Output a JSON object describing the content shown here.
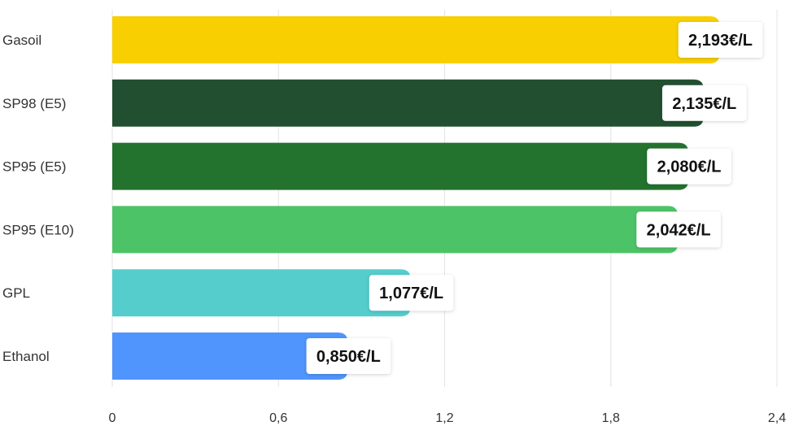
{
  "chart_data": {
    "type": "bar",
    "orientation": "horizontal",
    "categories": [
      "Gasoil",
      "SP98 (E5)",
      "SP95 (E5)",
      "SP95 (E10)",
      "GPL",
      "Ethanol"
    ],
    "values": [
      2.193,
      2.135,
      2.08,
      2.042,
      1.077,
      0.85
    ],
    "value_labels": [
      "2,193€/L",
      "2,135€/L",
      "2,080€/L",
      "2,042€/L",
      "1,077€/L",
      "0,850€/L"
    ],
    "colors": [
      "#f8cf00",
      "#214f30",
      "#23722d",
      "#4dc368",
      "#55cdcd",
      "#4f95fd"
    ],
    "xlim": [
      0,
      2.4
    ],
    "xticks": [
      0,
      0.6,
      1.2,
      1.8,
      2.4
    ],
    "xtick_labels": [
      "0",
      "0,6",
      "1,2",
      "1,8",
      "2,4"
    ],
    "grid": true,
    "legend": "none",
    "title": "",
    "xlabel": "",
    "ylabel": ""
  }
}
